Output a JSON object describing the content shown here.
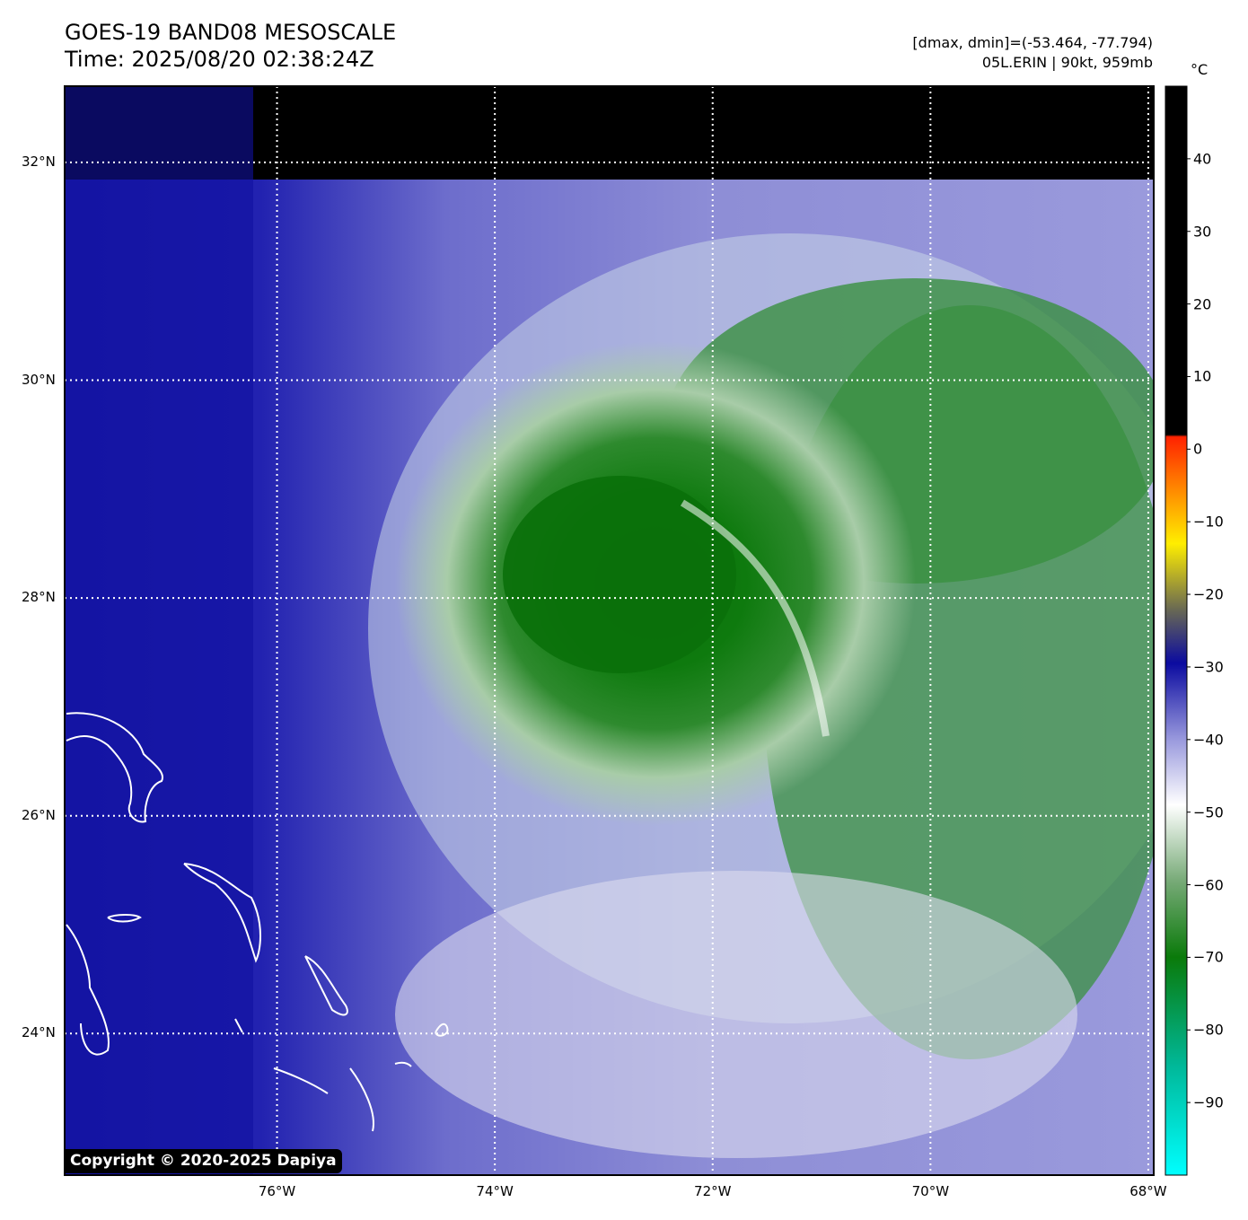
{
  "header": {
    "title_line1": "GOES-19 BAND08 MESOSCALE",
    "title_line2": "Time: 2025/08/20 02:38:24Z",
    "range_text": "[dmax, dmin]=(-53.464, -77.794)",
    "storm_text": "05L.ERIN | 90kt, 959mb"
  },
  "axes": {
    "lat_labels": [
      "32°N",
      "30°N",
      "28°N",
      "26°N",
      "24°N"
    ],
    "lat_values": [
      32,
      30,
      28,
      26,
      24
    ],
    "lon_labels": [
      "76°W",
      "74°W",
      "72°W",
      "70°W",
      "68°W"
    ],
    "lon_values": [
      -76,
      -74,
      -72,
      -70,
      -68
    ],
    "lat_range": [
      22.7,
      32.7
    ],
    "lon_range": [
      -77.95,
      -67.95
    ],
    "grid": true
  },
  "colorbar": {
    "unit": "°C",
    "tick_labels": [
      "40",
      "30",
      "20",
      "10",
      "0",
      "−10",
      "−20",
      "−30",
      "−40",
      "−50",
      "−60",
      "−70",
      "−80",
      "−90"
    ],
    "tick_values": [
      40,
      30,
      20,
      10,
      0,
      -10,
      -20,
      -30,
      -40,
      -50,
      -60,
      -70,
      -80,
      -90
    ],
    "range": [
      -100,
      50
    ],
    "colors": {
      "warm": "#000000",
      "red": "#ff2200",
      "orange": "#ff9900",
      "yellow": "#ffff00",
      "gray": "#6a6a52",
      "blue": "#0b0ba0",
      "lavender": "#9999dd",
      "white": "#ffffff",
      "green": "#0a7a0a",
      "cyan": "#00ffff"
    }
  },
  "storm": {
    "name": "05L.ERIN",
    "center_lat": 27.9,
    "center_lon": -72.9
  },
  "copyright": "Copyright © 2020-2025 Dapiya"
}
